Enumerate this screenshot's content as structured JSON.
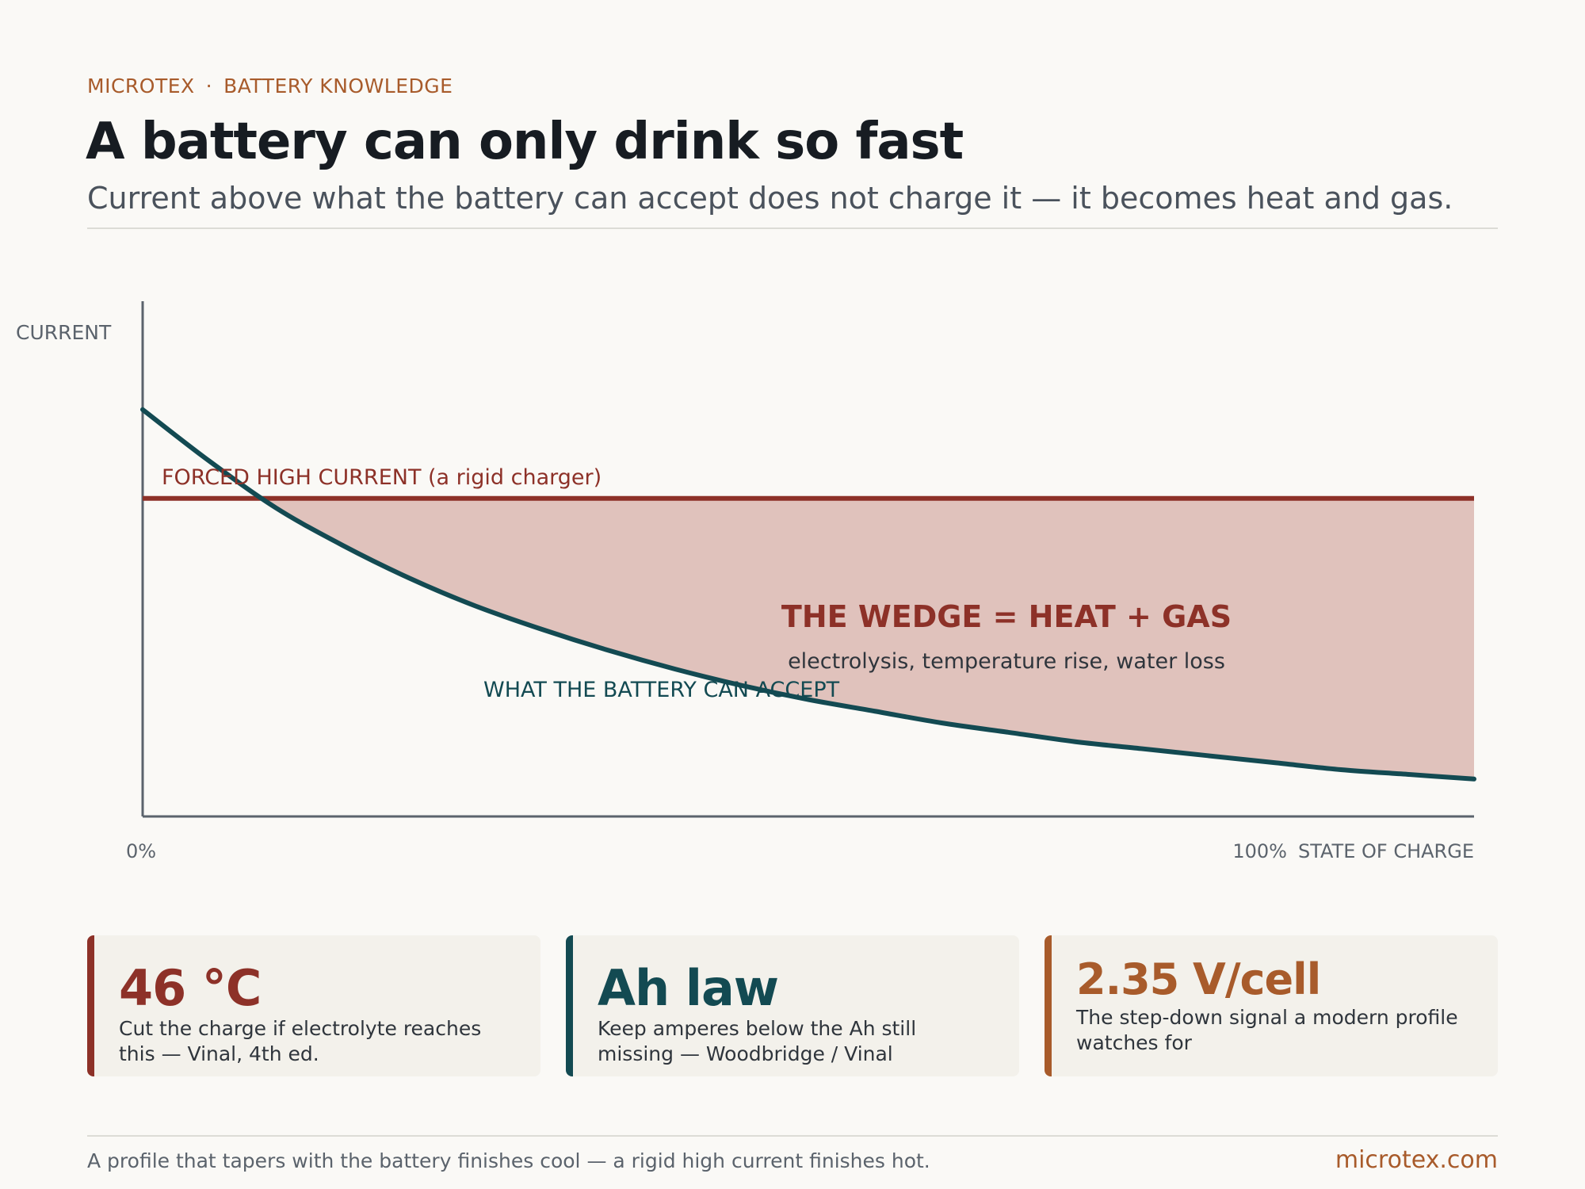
{
  "header": {
    "brand": "MICROTEX",
    "separator": "·",
    "section": "BATTERY KNOWLEDGE",
    "title": "A battery can only drink so fast",
    "subtitle": "Current above what the battery can accept does not charge it — it becomes heat and gas."
  },
  "chart_data": {
    "type": "area",
    "ylabel": "CURRENT",
    "xlabel": "STATE OF CHARGE",
    "x_tick_labels": [
      "0%",
      "100%"
    ],
    "xlim": [
      0,
      100
    ],
    "ylim": [
      0,
      1
    ],
    "grid": false,
    "series": [
      {
        "name": "WHAT THE BATTERY CAN ACCEPT",
        "color": "#134a52",
        "x": [
          0,
          5,
          10,
          15,
          20,
          25,
          30,
          35,
          40,
          45,
          50,
          55,
          60,
          65,
          70,
          75,
          80,
          85,
          90,
          95,
          100
        ],
        "y": [
          0.87,
          0.76,
          0.66,
          0.58,
          0.51,
          0.45,
          0.4,
          0.355,
          0.315,
          0.28,
          0.25,
          0.225,
          0.2,
          0.18,
          0.16,
          0.145,
          0.13,
          0.115,
          0.1,
          0.09,
          0.08
        ]
      },
      {
        "name": "FORCED HIGH CURRENT (a rigid charger)",
        "color": "#8d3128",
        "x": [
          0,
          100
        ],
        "y": [
          0.68,
          0.68
        ]
      }
    ],
    "annotations": {
      "wedge_title": "THE WEDGE = HEAT + GAS",
      "wedge_subtitle": "electrolysis, temperature rise, water loss",
      "wedge_color": "#e0c2bc"
    }
  },
  "cards": [
    {
      "value": "46 °C",
      "desc": "Cut the charge if electrolyte reaches this — Vinal, 4th ed.",
      "color": "#8d3128"
    },
    {
      "value": "Ah law",
      "desc": "Keep amperes below the Ah still missing — Woodbridge / Vinal",
      "color": "#134a52"
    },
    {
      "value": "2.35 V/cell",
      "desc": "The step-down signal a modern profile watches for",
      "color": "#a85b2b"
    }
  ],
  "footer": {
    "text": "A profile that tapers with the battery finishes cool — a rigid high current finishes hot.",
    "link": "microtex.com"
  }
}
